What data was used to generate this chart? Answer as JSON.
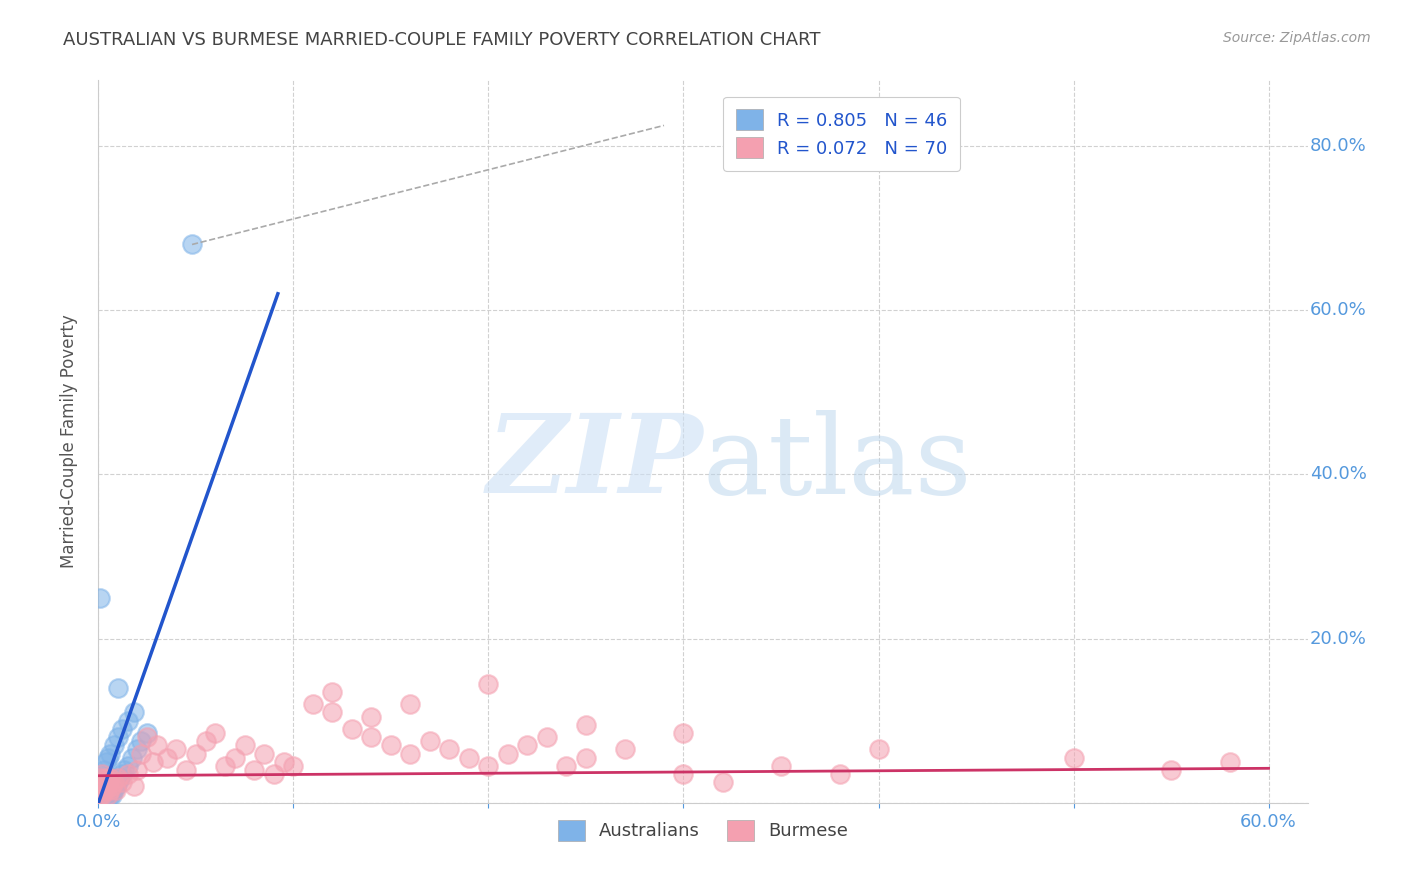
{
  "title": "AUSTRALIAN VS BURMESE MARRIED-COUPLE FAMILY POVERTY CORRELATION CHART",
  "source": "Source: ZipAtlas.com",
  "ylabel": "Married-Couple Family Poverty",
  "watermark_zip": "ZIP",
  "watermark_atlas": "atlas",
  "australian_color": "#7fb3e8",
  "burmese_color": "#f4a0b0",
  "trend_australian_color": "#2255cc",
  "trend_burmese_color": "#cc3366",
  "background_color": "#ffffff",
  "grid_color": "#cccccc",
  "title_color": "#444444",
  "right_axis_color": "#5599dd",
  "ylabel_color": "#555555",
  "legend_label_color": "#2255cc",
  "aus_trend_x0": 0.0,
  "aus_trend_y0": 0.0,
  "aus_trend_x1": 0.092,
  "aus_trend_y1": 0.62,
  "bur_trend_x0": 0.0,
  "bur_trend_y0": 0.033,
  "bur_trend_x1": 0.6,
  "bur_trend_y1": 0.042,
  "dashed_line_x0": 0.048,
  "dashed_line_y0": 0.68,
  "dashed_line_x1": 0.29,
  "dashed_line_y1": 0.825,
  "xlim": [
    0.0,
    0.62
  ],
  "ylim": [
    0.0,
    0.88
  ],
  "australian_x": [
    0.001,
    0.001,
    0.001,
    0.002,
    0.002,
    0.002,
    0.002,
    0.003,
    0.003,
    0.003,
    0.003,
    0.004,
    0.004,
    0.005,
    0.005,
    0.006,
    0.006,
    0.007,
    0.007,
    0.008,
    0.009,
    0.01,
    0.011,
    0.012,
    0.013,
    0.015,
    0.017,
    0.02,
    0.022,
    0.025,
    0.001,
    0.002,
    0.003,
    0.004,
    0.005,
    0.006,
    0.008,
    0.01,
    0.012,
    0.015,
    0.018,
    0.001,
    0.002,
    0.003,
    0.048,
    0.01
  ],
  "australian_y": [
    0.005,
    0.01,
    0.015,
    0.005,
    0.01,
    0.015,
    0.02,
    0.005,
    0.01,
    0.015,
    0.02,
    0.01,
    0.015,
    0.01,
    0.02,
    0.01,
    0.025,
    0.01,
    0.02,
    0.015,
    0.02,
    0.025,
    0.03,
    0.035,
    0.04,
    0.045,
    0.055,
    0.065,
    0.075,
    0.085,
    0.03,
    0.035,
    0.04,
    0.05,
    0.055,
    0.06,
    0.07,
    0.08,
    0.09,
    0.1,
    0.11,
    0.25,
    0.008,
    0.012,
    0.68,
    0.14
  ],
  "burmese_x": [
    0.001,
    0.001,
    0.001,
    0.002,
    0.002,
    0.002,
    0.003,
    0.003,
    0.004,
    0.004,
    0.005,
    0.005,
    0.006,
    0.006,
    0.007,
    0.008,
    0.009,
    0.01,
    0.012,
    0.015,
    0.018,
    0.02,
    0.022,
    0.025,
    0.028,
    0.03,
    0.035,
    0.04,
    0.045,
    0.05,
    0.055,
    0.06,
    0.065,
    0.07,
    0.075,
    0.08,
    0.085,
    0.09,
    0.095,
    0.1,
    0.11,
    0.12,
    0.13,
    0.14,
    0.15,
    0.16,
    0.17,
    0.18,
    0.19,
    0.2,
    0.21,
    0.22,
    0.23,
    0.24,
    0.25,
    0.27,
    0.3,
    0.32,
    0.35,
    0.38,
    0.12,
    0.14,
    0.16,
    0.2,
    0.25,
    0.3,
    0.4,
    0.5,
    0.55,
    0.58
  ],
  "burmese_y": [
    0.01,
    0.02,
    0.03,
    0.01,
    0.02,
    0.035,
    0.015,
    0.025,
    0.015,
    0.03,
    0.01,
    0.025,
    0.015,
    0.03,
    0.02,
    0.025,
    0.015,
    0.03,
    0.025,
    0.035,
    0.02,
    0.04,
    0.06,
    0.08,
    0.05,
    0.07,
    0.055,
    0.065,
    0.04,
    0.06,
    0.075,
    0.085,
    0.045,
    0.055,
    0.07,
    0.04,
    0.06,
    0.035,
    0.05,
    0.045,
    0.12,
    0.11,
    0.09,
    0.08,
    0.07,
    0.06,
    0.075,
    0.065,
    0.055,
    0.045,
    0.06,
    0.07,
    0.08,
    0.045,
    0.055,
    0.065,
    0.035,
    0.025,
    0.045,
    0.035,
    0.135,
    0.105,
    0.12,
    0.145,
    0.095,
    0.085,
    0.065,
    0.055,
    0.04,
    0.05
  ]
}
